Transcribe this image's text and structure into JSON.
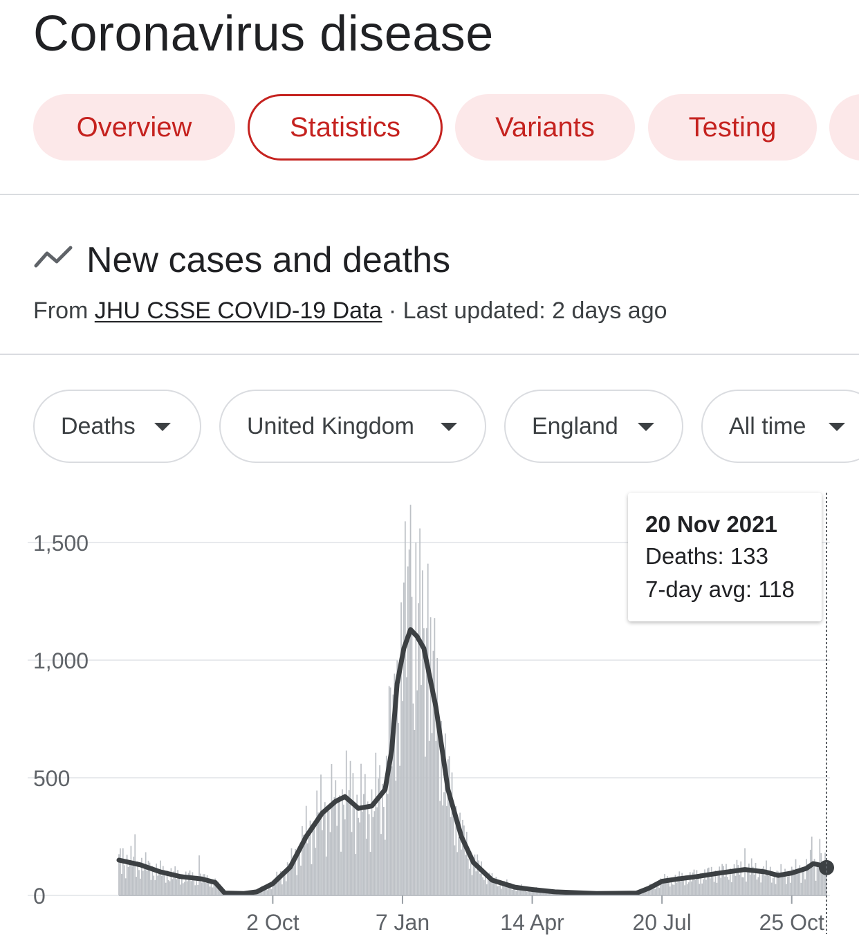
{
  "page": {
    "title": "Coronavirus disease"
  },
  "tabs": [
    {
      "label": "Overview",
      "active": false
    },
    {
      "label": "Statistics",
      "active": true
    },
    {
      "label": "Variants",
      "active": false
    },
    {
      "label": "Testing",
      "active": false
    },
    {
      "label": "",
      "active": false
    }
  ],
  "section": {
    "icon": "trending-line-icon",
    "title": "New cases and deaths",
    "source_prefix": "From",
    "source_link": "JHU CSSE COVID-19 Data",
    "updated": "· Last updated: 2 days ago"
  },
  "filters": [
    {
      "label": "Deaths"
    },
    {
      "label": "United Kingdom"
    },
    {
      "label": "England"
    },
    {
      "label": "All time"
    }
  ],
  "tooltip": {
    "date": "20 Nov 2021",
    "deaths_label": "Deaths:",
    "deaths_value": 133,
    "avg_label": "7-day avg:",
    "avg_value": 118
  },
  "colors": {
    "accent": "#c5221f",
    "tab_bg": "#fce8e9",
    "bars": "#bdc1c6",
    "line": "#3c4043"
  },
  "chart_data": {
    "type": "bar",
    "title": "",
    "xlabel": "",
    "ylabel": "",
    "ylim": [
      0,
      1650
    ],
    "yticks": [
      0,
      500,
      1000,
      1500
    ],
    "ytick_labels": [
      "0",
      "500",
      "1,000",
      "1,500"
    ],
    "x_range": [
      "2020-06-09",
      "2021-11-20"
    ],
    "xticks": [
      "2020-10-02",
      "2021-01-07",
      "2021-04-14",
      "2021-07-20",
      "2021-10-25"
    ],
    "xtick_labels": [
      "2 Oct",
      "7 Jan",
      "14 Apr",
      "20 Jul",
      "25 Oct"
    ],
    "grid": true,
    "series": [
      {
        "kind": "bar",
        "daily_from_avg": true,
        "spikes": [
          {
            "date": "2020-06-12",
            "value": 200
          },
          {
            "date": "2020-06-21",
            "value": 260
          },
          {
            "date": "2020-08-08",
            "value": 170
          },
          {
            "date": "2020-11-18",
            "value": 490
          },
          {
            "date": "2020-12-01",
            "value": 520
          },
          {
            "date": "2020-12-28",
            "value": 890
          },
          {
            "date": "2021-01-08",
            "value": 1330
          },
          {
            "date": "2021-01-12",
            "value": 1470
          },
          {
            "date": "2021-01-13",
            "value": 1660
          },
          {
            "date": "2021-01-17",
            "value": 1500
          },
          {
            "date": "2021-01-20",
            "value": 1560
          },
          {
            "date": "2021-01-26",
            "value": 1410
          },
          {
            "date": "2021-09-20",
            "value": 200
          },
          {
            "date": "2021-11-09",
            "value": 250
          },
          {
            "date": "2021-11-15",
            "value": 240
          }
        ]
      },
      {
        "name": "7-day avg",
        "kind": "line",
        "points": [
          [
            "2020-06-09",
            150
          ],
          [
            "2020-06-25",
            130
          ],
          [
            "2020-07-10",
            100
          ],
          [
            "2020-07-25",
            80
          ],
          [
            "2020-08-10",
            70
          ],
          [
            "2020-08-20",
            55
          ],
          [
            "2020-08-27",
            10
          ],
          [
            "2020-09-10",
            8
          ],
          [
            "2020-09-20",
            15
          ],
          [
            "2020-10-02",
            50
          ],
          [
            "2020-10-15",
            120
          ],
          [
            "2020-10-27",
            250
          ],
          [
            "2020-11-08",
            350
          ],
          [
            "2020-11-18",
            400
          ],
          [
            "2020-11-25",
            420
          ],
          [
            "2020-12-05",
            370
          ],
          [
            "2020-12-15",
            380
          ],
          [
            "2020-12-25",
            450
          ],
          [
            "2020-12-30",
            620
          ],
          [
            "2021-01-03",
            900
          ],
          [
            "2021-01-08",
            1050
          ],
          [
            "2021-01-13",
            1130
          ],
          [
            "2021-01-18",
            1100
          ],
          [
            "2021-01-23",
            1050
          ],
          [
            "2021-02-01",
            800
          ],
          [
            "2021-02-10",
            450
          ],
          [
            "2021-02-20",
            250
          ],
          [
            "2021-03-01",
            140
          ],
          [
            "2021-03-15",
            65
          ],
          [
            "2021-04-01",
            35
          ],
          [
            "2021-04-14",
            25
          ],
          [
            "2021-05-01",
            15
          ],
          [
            "2021-06-01",
            8
          ],
          [
            "2021-07-01",
            10
          ],
          [
            "2021-07-10",
            30
          ],
          [
            "2021-07-20",
            60
          ],
          [
            "2021-08-01",
            70
          ],
          [
            "2021-08-15",
            80
          ],
          [
            "2021-09-01",
            95
          ],
          [
            "2021-09-20",
            110
          ],
          [
            "2021-10-05",
            100
          ],
          [
            "2021-10-15",
            85
          ],
          [
            "2021-10-25",
            95
          ],
          [
            "2021-11-05",
            115
          ],
          [
            "2021-11-10",
            135
          ],
          [
            "2021-11-16",
            128
          ],
          [
            "2021-11-20",
            118
          ]
        ]
      }
    ]
  }
}
